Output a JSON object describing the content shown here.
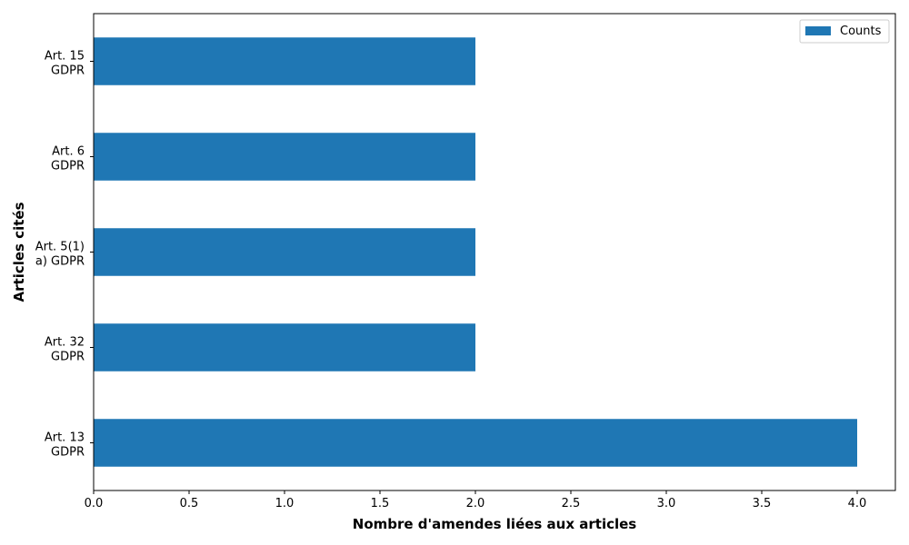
{
  "chart_data": {
    "type": "bar",
    "orientation": "horizontal",
    "categories": [
      "Art. 13 GDPR",
      "Art. 32 GDPR",
      "Art. 5(1) a) GDPR",
      "Art. 6 GDPR",
      "Art. 15 GDPR"
    ],
    "category_lines": [
      [
        "Art. 13",
        "GDPR"
      ],
      [
        "Art. 32",
        "GDPR"
      ],
      [
        "Art. 5(1)",
        "a) GDPR"
      ],
      [
        "Art. 6",
        "GDPR"
      ],
      [
        "Art. 15",
        "GDPR"
      ]
    ],
    "series": [
      {
        "name": "Counts",
        "values": [
          4,
          2,
          2,
          2,
          2
        ],
        "color": "#1f77b4"
      }
    ],
    "xlabel": "Nombre d'amendes liées aux articles",
    "ylabel": "Articles cités",
    "xlim": [
      0,
      4.2
    ],
    "xticks": [
      "0.0",
      "0.5",
      "1.0",
      "1.5",
      "2.0",
      "2.5",
      "3.0",
      "3.5",
      "4.0"
    ],
    "grid": false,
    "legend": "top-right"
  }
}
